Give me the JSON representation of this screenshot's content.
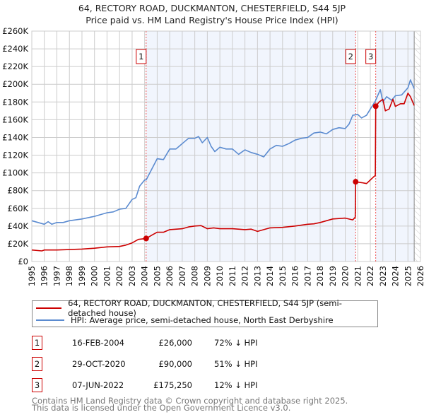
{
  "chart_data": {
    "type": "line",
    "title": "64, RECTORY ROAD, DUCKMANTON, CHESTERFIELD, S44 5JP",
    "subtitle": "Price paid vs. HM Land Registry's House Price Index (HPI)",
    "xlim": [
      1995,
      2026
    ],
    "ylim": [
      0,
      260000
    ],
    "y_ticks": [
      0,
      20000,
      40000,
      60000,
      80000,
      100000,
      120000,
      140000,
      160000,
      180000,
      200000,
      220000,
      240000,
      260000
    ],
    "y_tick_labels": [
      "£0",
      "£20K",
      "£40K",
      "£60K",
      "£80K",
      "£100K",
      "£120K",
      "£140K",
      "£160K",
      "£180K",
      "£200K",
      "£220K",
      "£240K",
      "£260K"
    ],
    "x_ticks": [
      1995,
      1996,
      1997,
      1998,
      1999,
      2000,
      2001,
      2002,
      2003,
      2004,
      2005,
      2006,
      2007,
      2008,
      2009,
      2010,
      2011,
      2012,
      2013,
      2014,
      2015,
      2016,
      2017,
      2018,
      2019,
      2020,
      2021,
      2022,
      2023,
      2024,
      2025,
      2026
    ],
    "grid": true,
    "data_end": 2025.5,
    "series": [
      {
        "name": "64, RECTORY ROAD, DUCKMANTON, CHESTERFIELD, S44 5JP (semi-detached house)",
        "color": "#cc0000",
        "x": [
          1995,
          1995.8,
          1996,
          1997,
          1998,
          1999,
          2000,
          2001,
          2002,
          2002.5,
          2003,
          2003.5,
          2004.12,
          2004.6,
          2005,
          2005.5,
          2006,
          2007,
          2007.5,
          2008,
          2008.5,
          2009,
          2009.5,
          2010,
          2011,
          2012,
          2012.5,
          2013,
          2013.5,
          2014,
          2015,
          2016,
          2017,
          2017.5,
          2018,
          2019,
          2020,
          2020.6,
          2020.8,
          2020.83,
          2021.3,
          2021.7,
          2022.3,
          2022.4,
          2022.43,
          2022.7,
          2023,
          2023.2,
          2023.5,
          2023.8,
          2024,
          2024.4,
          2024.7,
          2025,
          2025.2,
          2025.5
        ],
        "y": [
          13000,
          12000,
          13000,
          13000,
          13500,
          14000,
          15000,
          16500,
          17000,
          18500,
          21000,
          25000,
          26000,
          30000,
          33000,
          33000,
          36000,
          37000,
          39000,
          40000,
          40500,
          37000,
          38000,
          37000,
          37000,
          36000,
          36500,
          34000,
          36000,
          38000,
          38500,
          40000,
          42000,
          42500,
          44000,
          48000,
          49000,
          47000,
          50000,
          90000,
          89000,
          88000,
          96000,
          97000,
          175250,
          180000,
          183000,
          170000,
          172000,
          183000,
          175000,
          178000,
          178000,
          190000,
          186000,
          176000
        ]
      },
      {
        "name": "HPI: Average price, semi-detached house, North East Derbyshire",
        "color": "#5b8bd0",
        "x": [
          1995,
          1995.5,
          1996,
          1996.3,
          1996.6,
          1997,
          1997.5,
          1998,
          1999,
          2000,
          2001,
          2001.5,
          2002,
          2002.5,
          2003,
          2003.3,
          2003.6,
          2004,
          2004.12,
          2004.6,
          2005,
          2005.5,
          2006,
          2006.5,
          2007,
          2007.5,
          2008,
          2008.3,
          2008.6,
          2009,
          2009.3,
          2009.6,
          2010,
          2010.5,
          2011,
          2011.5,
          2012,
          2012.5,
          2013,
          2013.5,
          2014,
          2014.5,
          2015,
          2015.5,
          2016,
          2016.5,
          2017,
          2017.5,
          2018,
          2018.5,
          2019,
          2019.5,
          2020,
          2020.3,
          2020.6,
          2021,
          2021.3,
          2021.7,
          2022,
          2022.4,
          2022.8,
          2023,
          2023.3,
          2023.7,
          2024,
          2024.5,
          2025,
          2025.2,
          2025.5
        ],
        "y": [
          46000,
          44000,
          42000,
          45000,
          42000,
          44000,
          44000,
          46000,
          48000,
          51000,
          55000,
          56000,
          59000,
          60000,
          70000,
          72000,
          85000,
          92000,
          92000,
          105000,
          116000,
          115000,
          127000,
          127000,
          133000,
          139000,
          139000,
          141000,
          134000,
          140000,
          130000,
          124000,
          129000,
          127000,
          127000,
          121000,
          126000,
          123000,
          121000,
          118000,
          127000,
          131000,
          130000,
          133000,
          137000,
          139000,
          140000,
          145000,
          146000,
          144000,
          149000,
          151000,
          150000,
          155000,
          165000,
          166000,
          162000,
          165000,
          172000,
          181000,
          194000,
          180000,
          186000,
          182000,
          187000,
          188000,
          196000,
          205000,
          195000
        ]
      }
    ],
    "sales": [
      {
        "label": "1",
        "x": 2004.12,
        "y": 26000
      },
      {
        "label": "2",
        "x": 2020.83,
        "y": 90000
      },
      {
        "label": "3",
        "x": 2022.43,
        "y": 175250
      }
    ]
  },
  "header": {
    "title": "64, RECTORY ROAD, DUCKMANTON, CHESTERFIELD, S44 5JP",
    "subtitle": "Price paid vs. HM Land Registry's House Price Index (HPI)"
  },
  "legend": {
    "property": "64, RECTORY ROAD, DUCKMANTON, CHESTERFIELD, S44 5JP (semi-detached house)",
    "hpi": "HPI: Average price, semi-detached house, North East Derbyshire"
  },
  "transactions": [
    {
      "num": "1",
      "date": "16-FEB-2004",
      "price": "£26,000",
      "pct": "72% ↓ HPI"
    },
    {
      "num": "2",
      "date": "29-OCT-2020",
      "price": "£90,000",
      "pct": "51% ↓ HPI"
    },
    {
      "num": "3",
      "date": "07-JUN-2022",
      "price": "£175,250",
      "pct": "12% ↓ HPI"
    }
  ],
  "footer": {
    "line1": "Contains HM Land Registry data © Crown copyright and database right 2025.",
    "line2": "This data is licensed under the Open Government Licence v3.0."
  }
}
